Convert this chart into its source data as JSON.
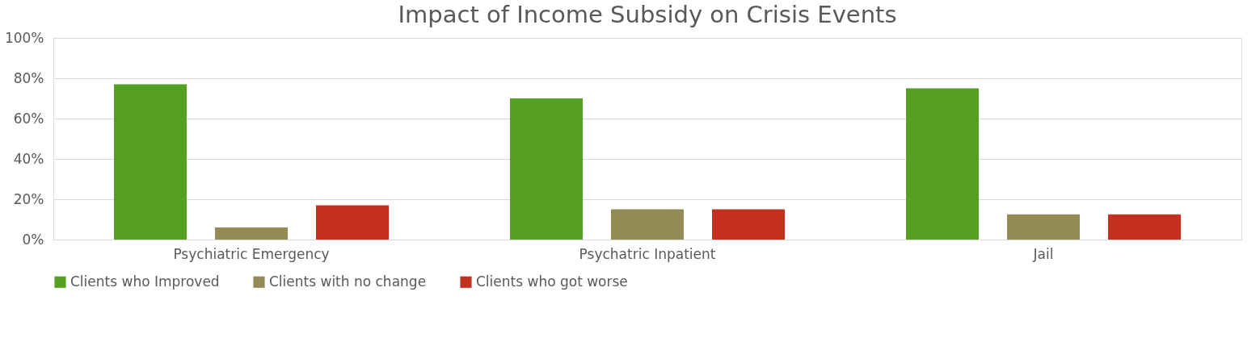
{
  "chart_data": {
    "type": "bar",
    "title": "Impact of Income Subsidy on Crisis Events",
    "categories": [
      "Psychiatric Emergency",
      "Psychatric Inpatient",
      "Jail"
    ],
    "series": [
      {
        "name": "Clients who Improved",
        "color": "#55a022",
        "values": [
          77,
          70,
          75
        ]
      },
      {
        "name": "Clients with no change",
        "color": "#948a54",
        "values": [
          6,
          15,
          12.5
        ]
      },
      {
        "name": "Clients who got worse",
        "color": "#c3301e",
        "values": [
          17,
          15,
          12.5
        ]
      }
    ],
    "ylim": [
      0,
      100
    ],
    "yticks": [
      {
        "value": 0,
        "label": "0%"
      },
      {
        "value": 20,
        "label": "20%"
      },
      {
        "value": 40,
        "label": "40%"
      },
      {
        "value": 60,
        "label": "60%"
      },
      {
        "value": 80,
        "label": "80%"
      },
      {
        "value": 100,
        "label": "100%"
      }
    ],
    "grid": "y",
    "legend": "bottom"
  }
}
